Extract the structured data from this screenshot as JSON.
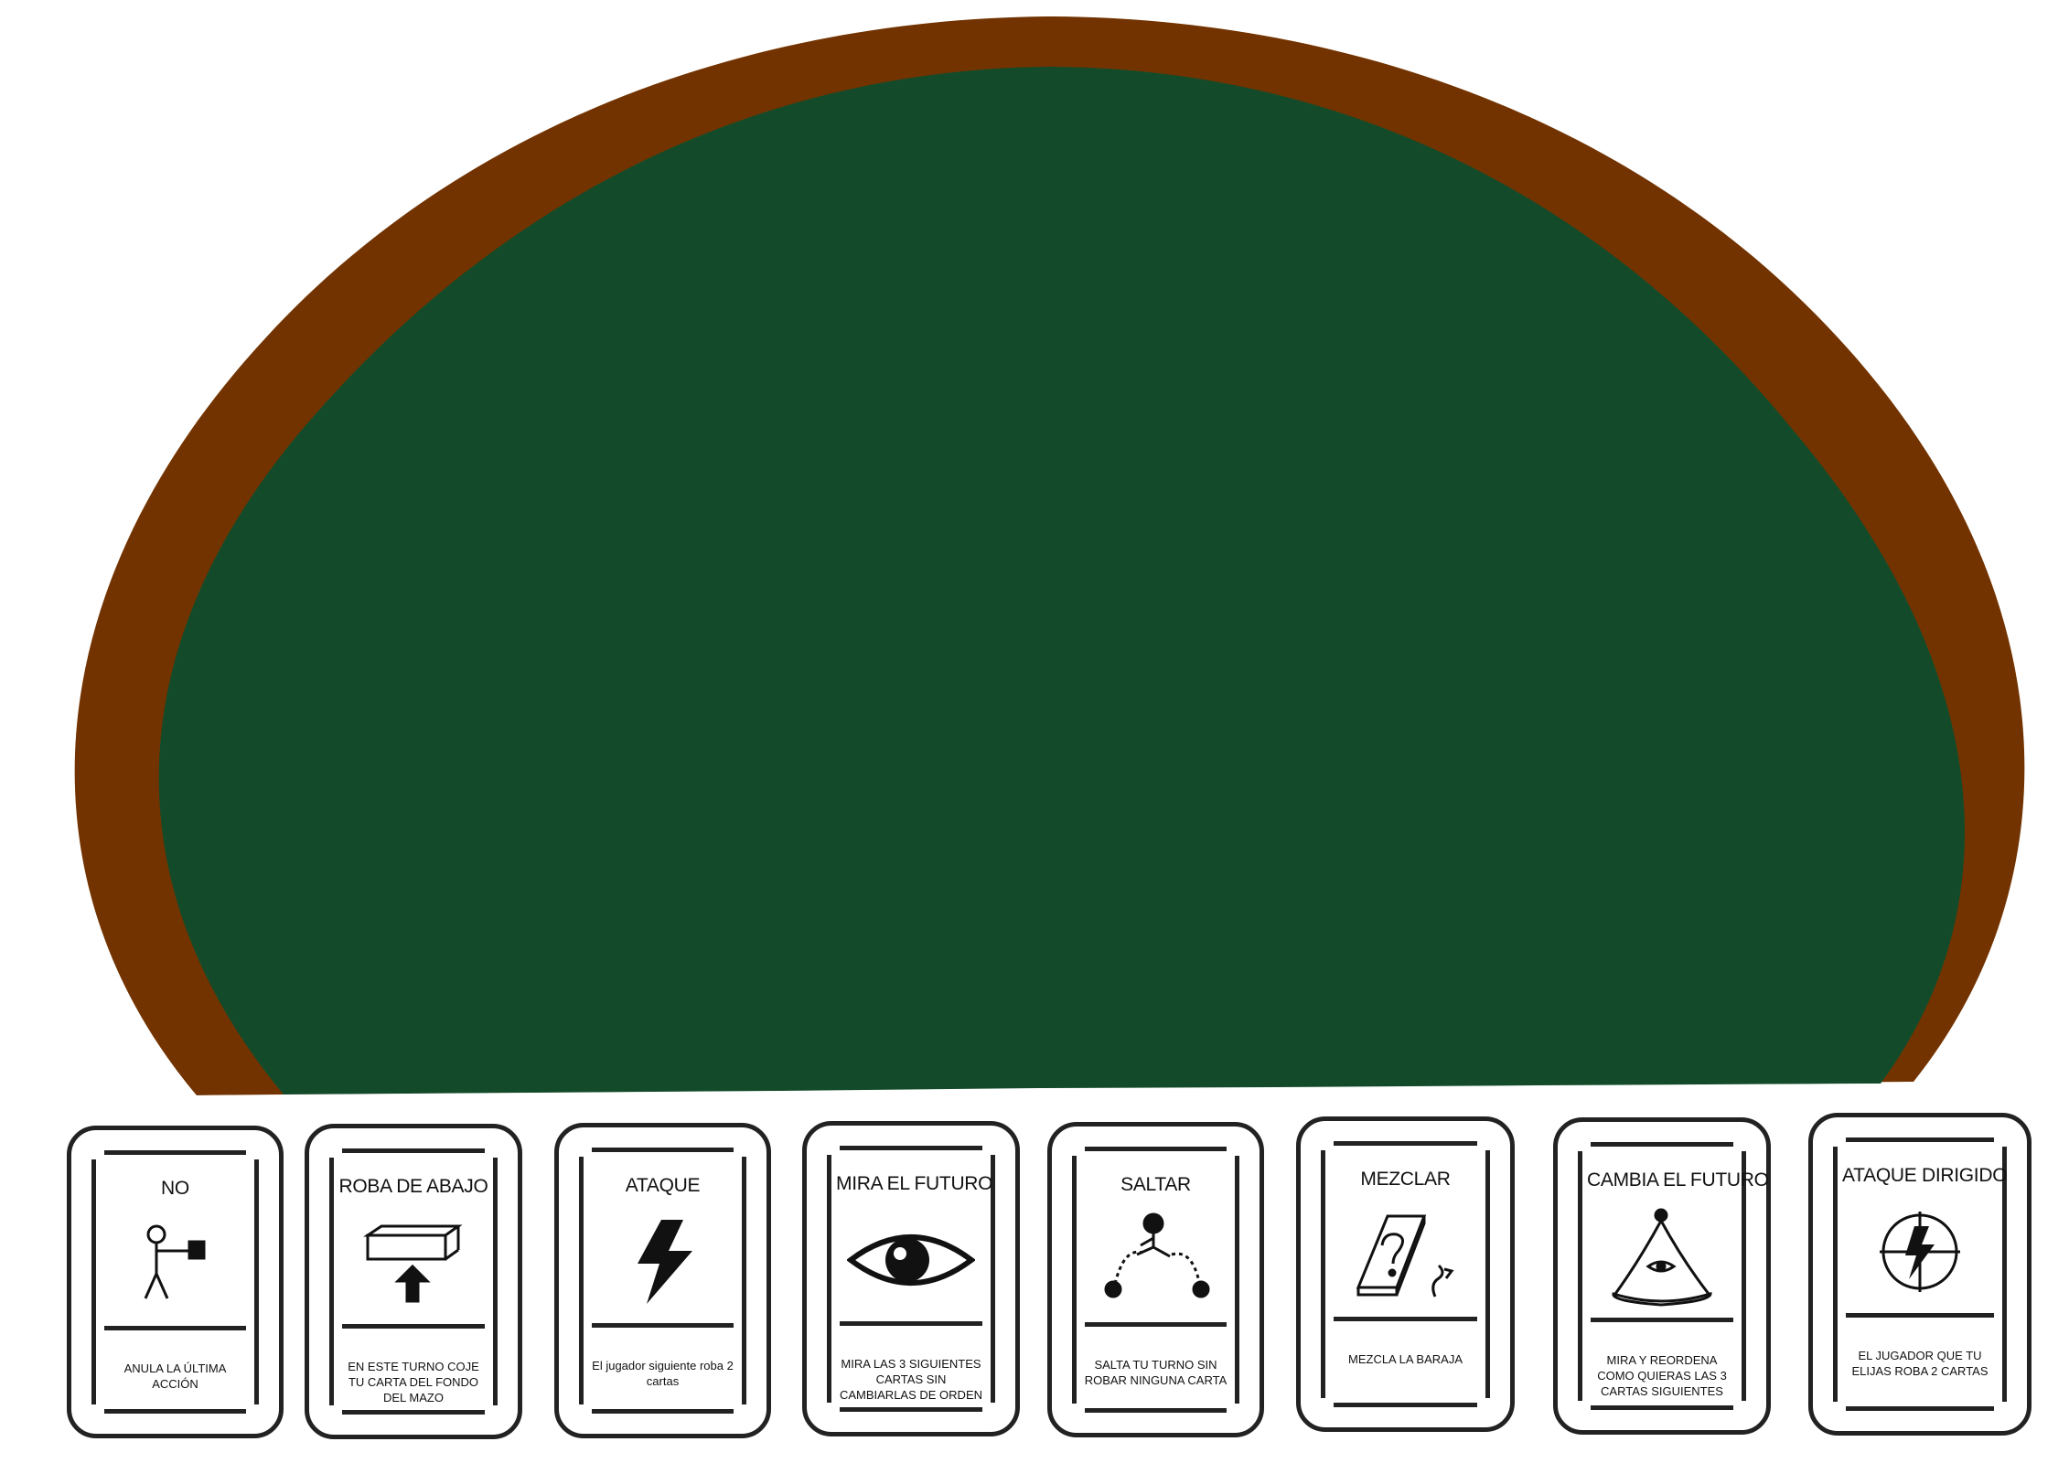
{
  "colors": {
    "table_rim": "#723300",
    "table_felt": "#134b2a",
    "card_border": "#222222",
    "background": "#ffffff"
  },
  "cards": [
    {
      "title": "NO",
      "icon": "stick-figure-stop-hand-icon",
      "description": "ANULA LA ÚLTIMA ACCIÓN"
    },
    {
      "title": "ROBA DE ABAJO",
      "icon": "box-arrow-up-icon",
      "description": "EN ESTE TURNO COJE TU CARTA DEL FONDO DEL MAZO"
    },
    {
      "title": "ATAQUE",
      "icon": "lightning-bolt-icon",
      "description": "El jugador siguiente roba 2 cartas"
    },
    {
      "title": "MIRA EL FUTURO",
      "icon": "eye-icon",
      "description": "MIRA LAS 3 SIGUIENTES CARTAS SIN CAMBIARLAS DE ORDEN"
    },
    {
      "title": "SALTAR",
      "icon": "jumping-figure-icon",
      "description": "SALTA TU TURNO SIN ROBAR NINGUNA CARTA"
    },
    {
      "title": "MEZCLAR",
      "icon": "question-box-icon",
      "description": "MEZCLA LA BARAJA"
    },
    {
      "title": "CAMBIA EL FUTURO",
      "icon": "wizard-hat-eye-icon",
      "description": "MIRA Y REORDENA COMO QUIERAS LAS 3 CARTAS SIGUIENTES"
    },
    {
      "title": "ATAQUE DIRIGIDO",
      "icon": "crosshair-bolt-icon",
      "description": "EL JUGADOR QUE TU ELIJAS ROBA 2 CARTAS"
    }
  ]
}
